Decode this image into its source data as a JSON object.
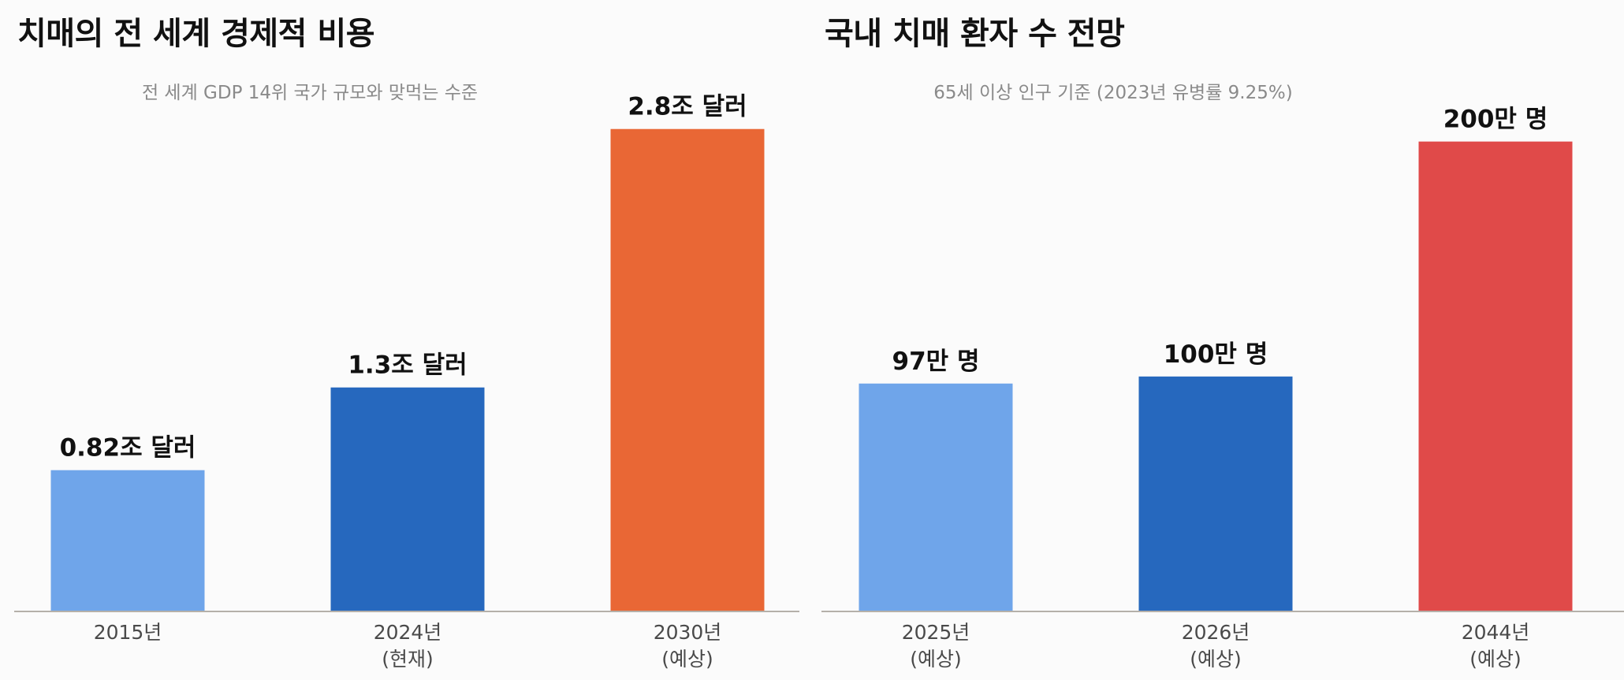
{
  "charts": [
    {
      "title": "치매의 전 세계 경제적 비용",
      "subtitle": "전 세계 GDP 14위 국가 규모와 맞먹는 수준"
    },
    {
      "title": "국내 치매 환자 수 전망",
      "subtitle": "65세 이상 인구 기준 (2023년 유병률 9.25%)"
    }
  ],
  "colors": {
    "light_blue": "#6fa5ea",
    "dark_blue": "#2668be",
    "orange": "#e96735",
    "red": "#e04a49",
    "axis": "#b5b0aa"
  },
  "chart_data": [
    {
      "type": "bar",
      "title": "치매의 전 세계 경제적 비용",
      "subtitle": "전 세계 GDP 14위 국가 규모와 맞먹는 수준",
      "categories": [
        [
          "2015년"
        ],
        [
          "2024년",
          "(현재)"
        ],
        [
          "2030년",
          "(예상)"
        ]
      ],
      "values": [
        0.82,
        1.3,
        2.8
      ],
      "value_labels": [
        "0.82조 달러",
        "1.3조 달러",
        "2.8조 달러"
      ],
      "unit": "조 달러",
      "colors": [
        "#6fa5ea",
        "#2668be",
        "#e96735"
      ],
      "ylim": [
        0,
        3.0
      ],
      "grid": false,
      "y_axis_visible": false
    },
    {
      "type": "bar",
      "title": "국내 치매 환자 수 전망",
      "subtitle": "65세 이상 인구 기준 (2023년 유병률 9.25%)",
      "categories": [
        [
          "2025년",
          "(예상)"
        ],
        [
          "2026년",
          "(예상)"
        ],
        [
          "2044년",
          "(예상)"
        ]
      ],
      "values": [
        97,
        100,
        200
      ],
      "value_labels": [
        "97만 명",
        "100만 명",
        "200만 명"
      ],
      "unit": "만 명",
      "colors": [
        "#6fa5ea",
        "#2668be",
        "#e04a49"
      ],
      "ylim": [
        0,
        220
      ],
      "grid": false,
      "y_axis_visible": false
    }
  ]
}
